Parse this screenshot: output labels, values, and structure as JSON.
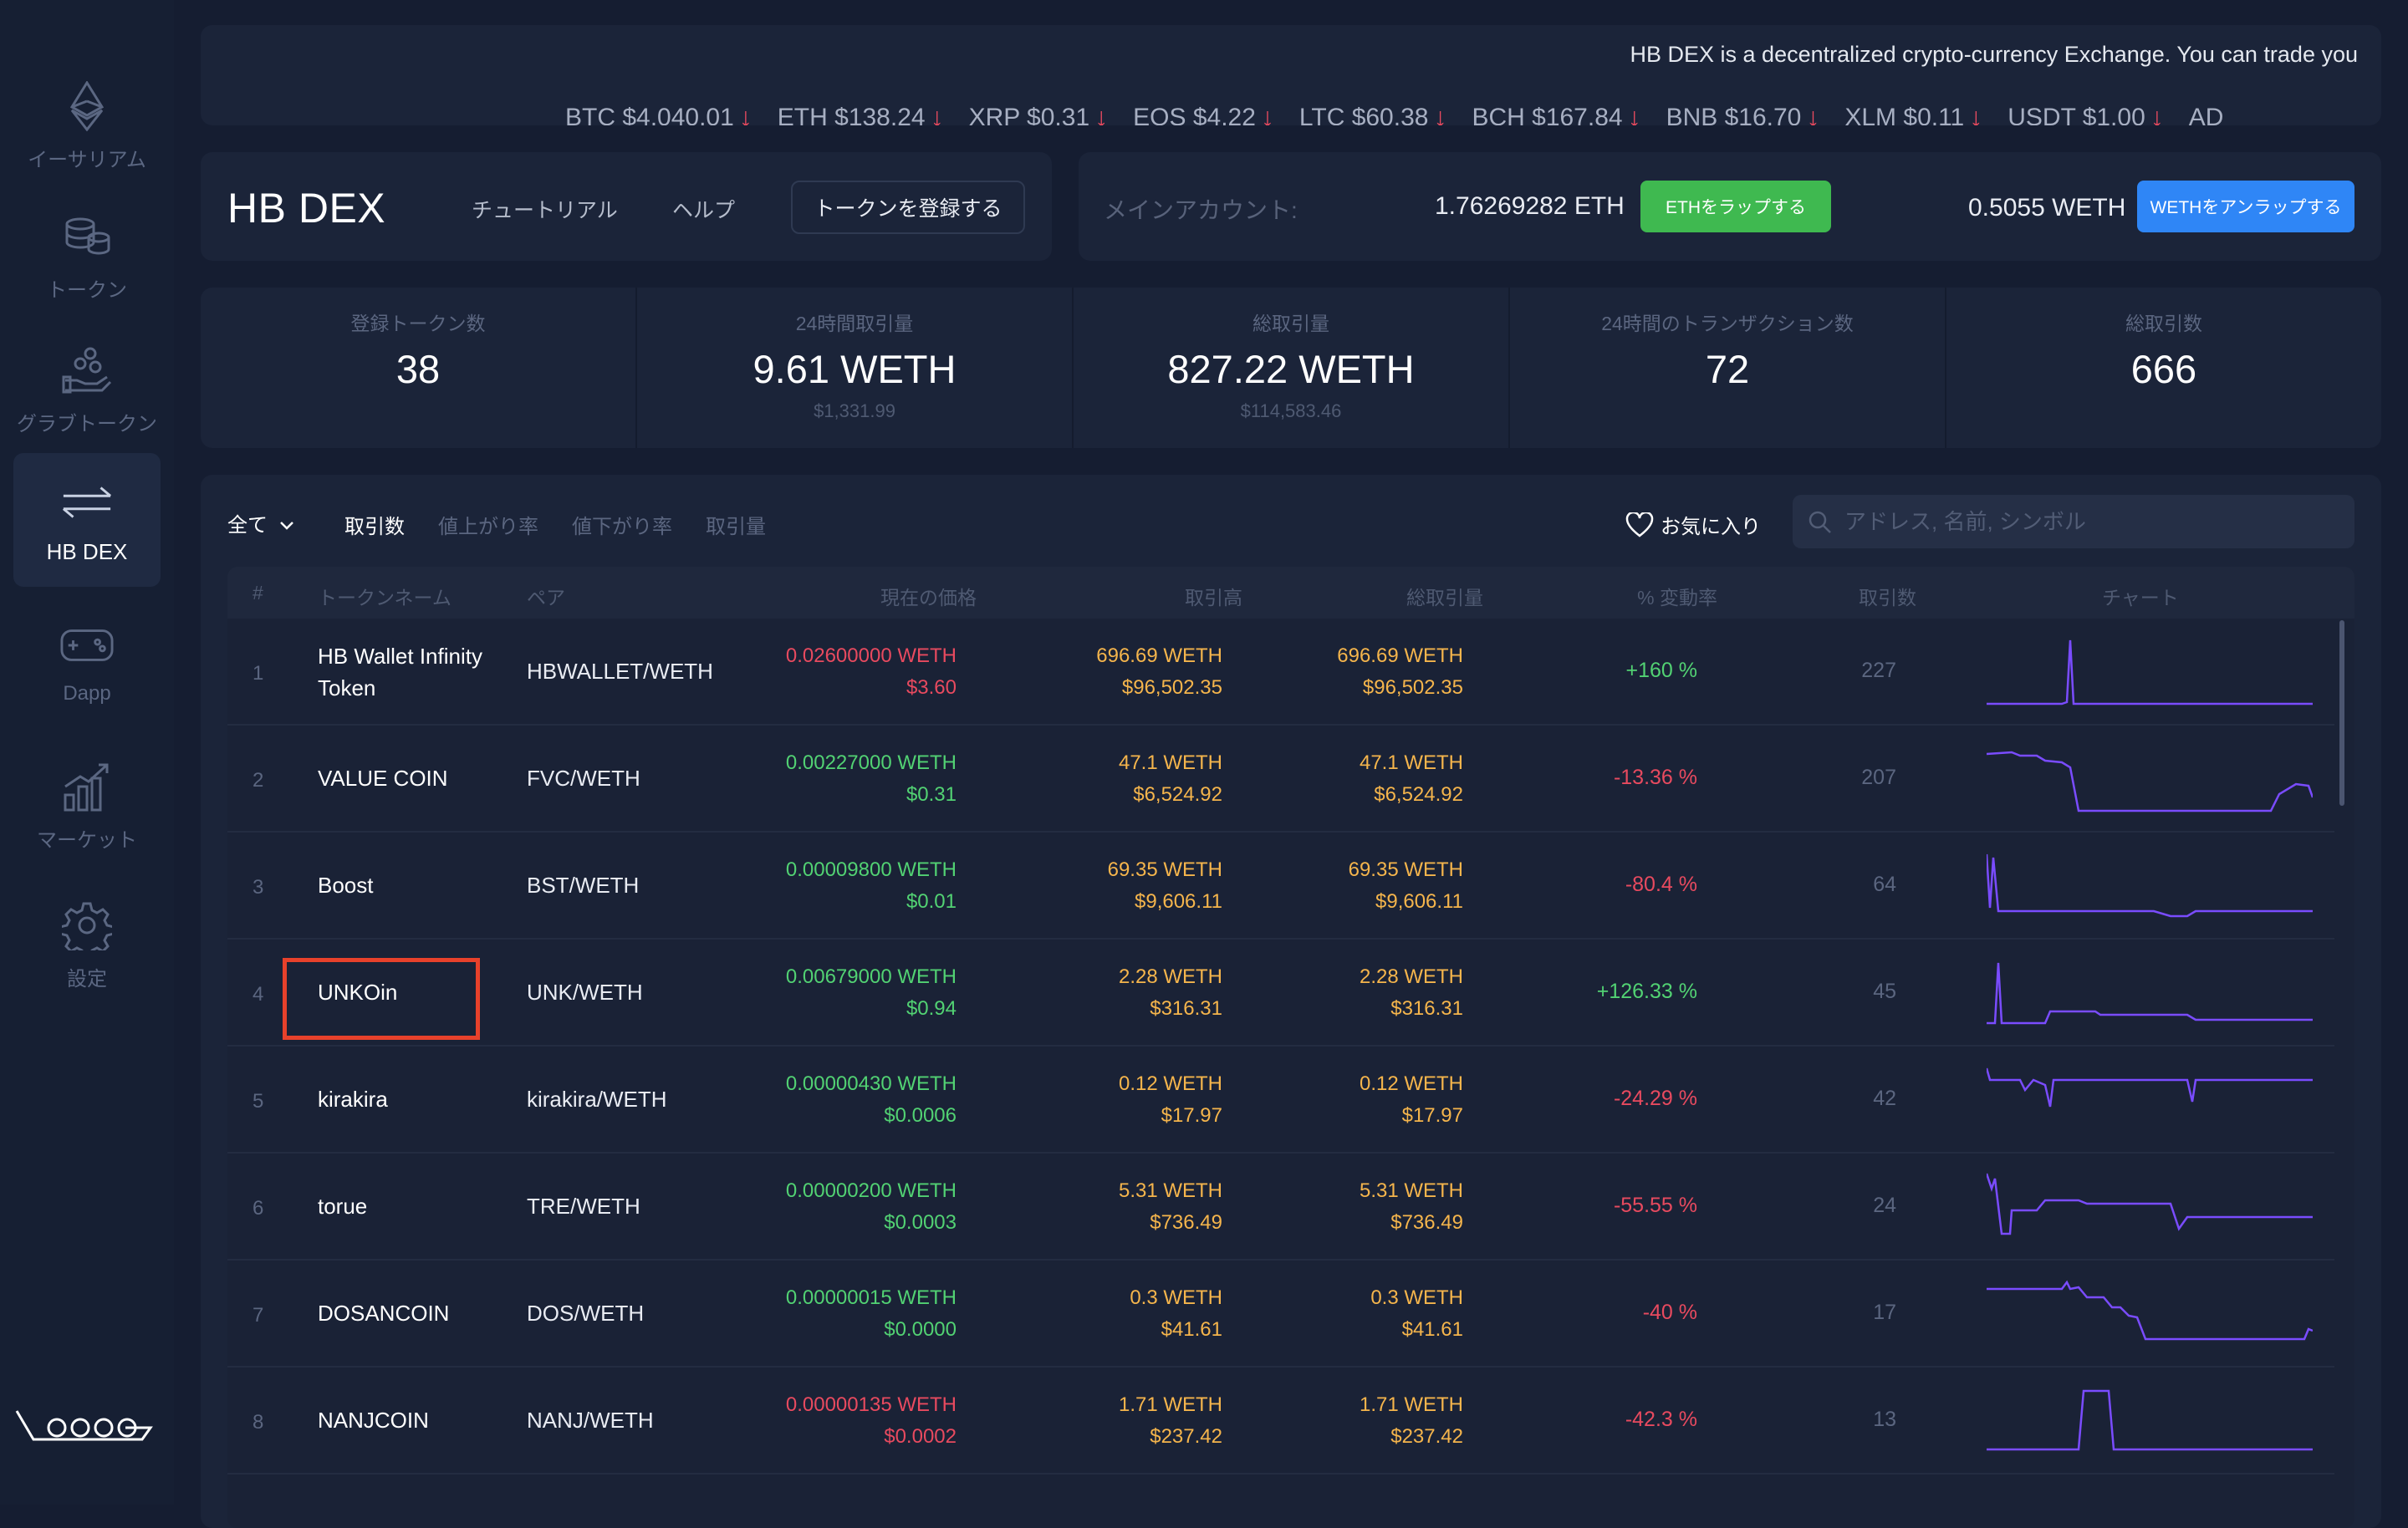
{
  "sidebar": {
    "items": [
      {
        "label": "イーサリアム",
        "icon": "ethereum-icon"
      },
      {
        "label": "トークン",
        "icon": "coins-icon"
      },
      {
        "label": "グラブトークン",
        "icon": "hand-coins-icon"
      },
      {
        "label": "HB DEX",
        "icon": "swap-arrows-icon",
        "active": true
      },
      {
        "label": "Dapp",
        "icon": "gamepad-icon"
      },
      {
        "label": "マーケット",
        "icon": "bar-chart-icon"
      },
      {
        "label": "設定",
        "icon": "gear-icon"
      }
    ]
  },
  "ticker": {
    "message": "HB DEX is a decentralized crypto-currency Exchange. You can trade you",
    "items": [
      {
        "label": "BTC $4,040.01"
      },
      {
        "label": "ETH $138.24"
      },
      {
        "label": "XRP $0.31"
      },
      {
        "label": "EOS $4.22"
      },
      {
        "label": "LTC $60.38"
      },
      {
        "label": "BCH $167.84"
      },
      {
        "label": "BNB $16.70"
      },
      {
        "label": "XLM $0.11"
      },
      {
        "label": "USDT $1.00"
      },
      {
        "label": "AD"
      }
    ],
    "arrow": "↓"
  },
  "header": {
    "title": "HB DEX",
    "tutorial": "チュートリアル",
    "help": "ヘルプ",
    "register_token": "トークンを登録する"
  },
  "account": {
    "label": "メインアカウント:",
    "eth_amount": "1.76269282 ETH",
    "wrap_button": "ETHをラップする",
    "weth_amount": "0.5055 WETH",
    "unwrap_button": "WETHをアンラップする"
  },
  "stats": [
    {
      "label": "登録トークン数",
      "value": "38",
      "sub": ""
    },
    {
      "label": "24時間取引量",
      "value": "9.61 WETH",
      "sub": "$1,331.99"
    },
    {
      "label": "総取引量",
      "value": "827.22 WETH",
      "sub": "$114,583.46"
    },
    {
      "label": "24時間のトランザクション数",
      "value": "72",
      "sub": ""
    },
    {
      "label": "総取引数",
      "value": "666",
      "sub": ""
    }
  ],
  "filters": {
    "all": "全て",
    "tabs": [
      "取引数",
      "値上がり率",
      "値下がり率",
      "取引量"
    ],
    "active_tab": "取引数",
    "favorites": "お気に入り",
    "search_placeholder": "アドレス, 名前, シンボル"
  },
  "table": {
    "headers": [
      "#",
      "トークンネーム",
      "ペア",
      "現在の価格",
      "取引高",
      "総取引量",
      "% 変動率",
      "取引数",
      "チャート"
    ],
    "rows": [
      {
        "num": "1",
        "name1": "HB Wallet Infinity",
        "name2": "Token",
        "pair": "HBWALLET/WETH",
        "price": "0.02600000 WETH",
        "price_usd": "$3.60",
        "price_color": "red",
        "vol": "696.69 WETH",
        "vol_usd": "$96,502.35",
        "total": "696.69 WETH",
        "total_usd": "$96,502.35",
        "change": "+160 %",
        "change_color": "green",
        "trades": "227"
      },
      {
        "num": "2",
        "name1": "VALUE COIN",
        "name2": "",
        "pair": "FVC/WETH",
        "price": "0.00227000 WETH",
        "price_usd": "$0.31",
        "price_color": "green",
        "vol": "47.1 WETH",
        "vol_usd": "$6,524.92",
        "total": "47.1 WETH",
        "total_usd": "$6,524.92",
        "change": "-13.36 %",
        "change_color": "red",
        "trades": "207"
      },
      {
        "num": "3",
        "name1": "Boost",
        "name2": "",
        "pair": "BST/WETH",
        "price": "0.00009800 WETH",
        "price_usd": "$0.01",
        "price_color": "green",
        "vol": "69.35 WETH",
        "vol_usd": "$9,606.11",
        "total": "69.35 WETH",
        "total_usd": "$9,606.11",
        "change": "-80.4 %",
        "change_color": "red",
        "trades": "64"
      },
      {
        "num": "4",
        "name1": "UNKOin",
        "name2": "",
        "pair": "UNK/WETH",
        "price": "0.00679000 WETH",
        "price_usd": "$0.94",
        "price_color": "green",
        "vol": "2.28 WETH",
        "vol_usd": "$316.31",
        "total": "2.28 WETH",
        "total_usd": "$316.31",
        "change": "+126.33 %",
        "change_color": "green",
        "trades": "45"
      },
      {
        "num": "5",
        "name1": "kirakira",
        "name2": "",
        "pair": "kirakira/WETH",
        "price": "0.00000430 WETH",
        "price_usd": "$0.0006",
        "price_color": "green",
        "vol": "0.12 WETH",
        "vol_usd": "$17.97",
        "total": "0.12 WETH",
        "total_usd": "$17.97",
        "change": "-24.29 %",
        "change_color": "red",
        "trades": "42"
      },
      {
        "num": "6",
        "name1": "torue",
        "name2": "",
        "pair": "TRE/WETH",
        "price": "0.00000200 WETH",
        "price_usd": "$0.0003",
        "price_color": "green",
        "vol": "5.31 WETH",
        "vol_usd": "$736.49",
        "total": "5.31 WETH",
        "total_usd": "$736.49",
        "change": "-55.55 %",
        "change_color": "red",
        "trades": "24"
      },
      {
        "num": "7",
        "name1": "DOSANCOIN",
        "name2": "",
        "pair": "DOS/WETH",
        "price": "0.00000015 WETH",
        "price_usd": "$0.0000",
        "price_color": "green",
        "vol": "0.3 WETH",
        "vol_usd": "$41.61",
        "total": "0.3 WETH",
        "total_usd": "$41.61",
        "change": "-40 %",
        "change_color": "red",
        "trades": "17"
      },
      {
        "num": "8",
        "name1": "NANJCOIN",
        "name2": "",
        "pair": "NANJ/WETH",
        "price": "0.00000135 WETH",
        "price_usd": "$0.0002",
        "price_color": "red",
        "vol": "1.71 WETH",
        "vol_usd": "$237.42",
        "total": "1.71 WETH",
        "total_usd": "$237.42",
        "change": "-42.3 %",
        "change_color": "red",
        "trades": "13"
      }
    ]
  },
  "colors": {
    "background": "#151d31",
    "panel": "#1b2439",
    "green": "#52d273",
    "red": "#e84a5f",
    "orange": "#f5b54c",
    "wrap_button": "#3fb950",
    "unwrap_button": "#2f86f6",
    "sparkline": "#7a4cff",
    "highlight": "#e8412b"
  }
}
